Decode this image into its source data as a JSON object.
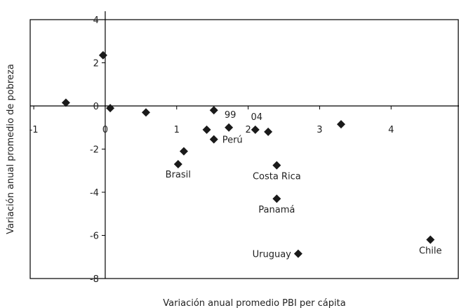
{
  "chart_data": {
    "type": "scatter",
    "xlabel": "Variación anual promedio PBI per cápita",
    "ylabel": "Variación anual promedio de pobreza",
    "xlim": [
      -1.05,
      4.95
    ],
    "ylim": [
      -8,
      4
    ],
    "x_ticks": [
      -1,
      0,
      1,
      2,
      3,
      4
    ],
    "y_ticks": [
      4,
      2,
      0,
      -2,
      -4,
      -6,
      -8
    ],
    "x_tick_labels": [
      "-1",
      "0",
      "1",
      "2",
      "3",
      "4"
    ],
    "y_tick_labels": [
      "4",
      "2",
      "0",
      "-2",
      "-4",
      "-6",
      "-8"
    ],
    "grid": false,
    "points": [
      {
        "x": -0.03,
        "y": 2.35,
        "label": ""
      },
      {
        "x": -0.55,
        "y": 0.15,
        "label": ""
      },
      {
        "x": 0.07,
        "y": -0.1,
        "label": ""
      },
      {
        "x": 0.57,
        "y": -0.3,
        "label": ""
      },
      {
        "x": 1.02,
        "y": -2.7,
        "label": "Brasil"
      },
      {
        "x": 1.1,
        "y": -2.1,
        "label": ""
      },
      {
        "x": 1.42,
        "y": -1.1,
        "label": ""
      },
      {
        "x": 1.52,
        "y": -0.2,
        "label": ""
      },
      {
        "x": 1.52,
        "y": -1.55,
        "label": "Perú"
      },
      {
        "x": 1.73,
        "y": -1.0,
        "label": "99"
      },
      {
        "x": 2.1,
        "y": -1.1,
        "label": "04"
      },
      {
        "x": 2.28,
        "y": -1.2,
        "label": ""
      },
      {
        "x": 2.4,
        "y": -2.75,
        "label": "Costa Rica"
      },
      {
        "x": 2.4,
        "y": -4.3,
        "label": "Panamá"
      },
      {
        "x": 2.7,
        "y": -6.85,
        "label": "Uruguay"
      },
      {
        "x": 3.3,
        "y": -0.85,
        "label": ""
      },
      {
        "x": 4.55,
        "y": -6.2,
        "label": "Chile"
      }
    ],
    "marker": "diamond",
    "marker_color": "#1a1a1a"
  }
}
